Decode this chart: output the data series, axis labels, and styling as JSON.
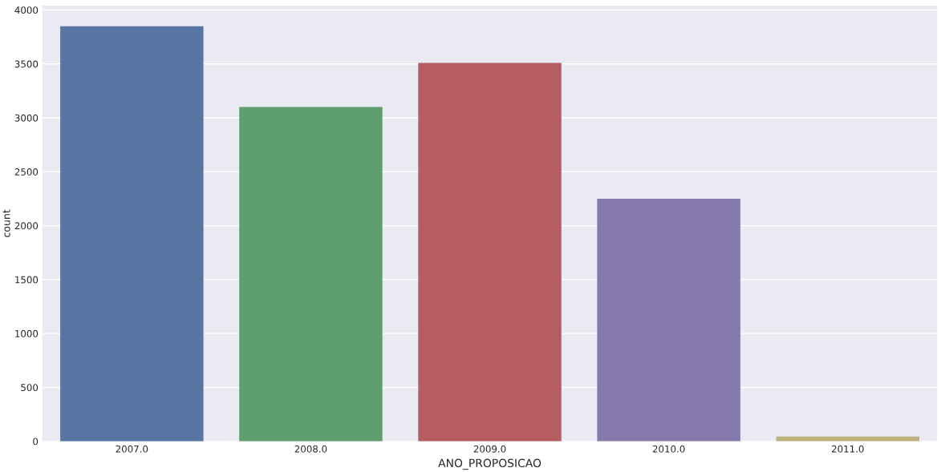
{
  "chart_data": {
    "type": "bar",
    "xlabel": "ANO_PROPOSICAO",
    "ylabel": "count",
    "categories": [
      "2007.0",
      "2008.0",
      "2009.0",
      "2010.0",
      "2011.0"
    ],
    "values": [
      3850,
      3100,
      3510,
      2250,
      45
    ],
    "colors": [
      "#5875a4",
      "#5f9e6e",
      "#b55d60",
      "#857aab",
      "#c1b37f"
    ],
    "ylim": [
      0,
      4040
    ],
    "yticks": [
      0,
      500,
      1000,
      1500,
      2000,
      2500,
      3000,
      3500,
      4000
    ],
    "grid": "y"
  }
}
